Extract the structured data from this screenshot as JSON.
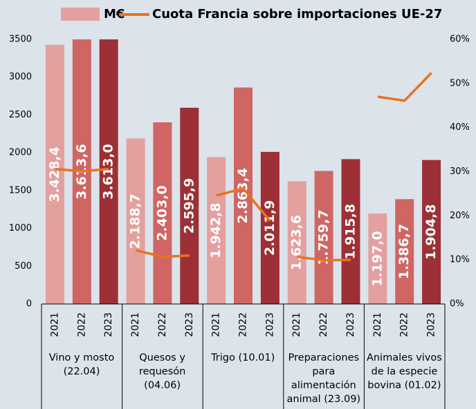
{
  "chart_data": {
    "type": "bar",
    "groups": [
      "Vino y mosto (22.04)",
      "Quesos y requesón (04.06)",
      "Trigo (10.01)",
      "Preparaciones para alimentación animal (23.09)",
      "Animales vivos de la especie bovina (01.02)"
    ],
    "categories": [
      "2021",
      "2022",
      "2023",
      "2021",
      "2022",
      "2023",
      "2021",
      "2022",
      "2023",
      "2021",
      "2022",
      "2023",
      "2021",
      "2022",
      "2023"
    ],
    "series": [
      {
        "name": "M€",
        "colors": [
          "#e3a09f",
          "#cf6664",
          "#9c3036"
        ],
        "values": [
          3428.4,
          3613.6,
          3613.0,
          2188.7,
          2403.0,
          2595.9,
          1942.8,
          2863.4,
          2011.9,
          1623.6,
          1759.7,
          1915.8,
          1197.0,
          1386.7,
          1904.8
        ],
        "value_labels": [
          "3.428,4",
          "3.613,6",
          "3.613,0",
          "2.188,7",
          "2.403,0",
          "2.595,9",
          "1.942,8",
          "2.863,4",
          "2.011,9",
          "1.623,6",
          "1.759,7",
          "1.915,8",
          "1.197,0",
          "1.386,7",
          "1.904,8"
        ]
      },
      {
        "name": "Cuota Francia sobre importaciones UE-27",
        "type": "line",
        "axis": "y2",
        "color": "#e8731f",
        "values": [
          30.6,
          30.1,
          30.6,
          12.2,
          10.7,
          11.0,
          24.6,
          26.2,
          18.8,
          10.7,
          9.9,
          10.0,
          47.0,
          46.1,
          52.4
        ]
      }
    ],
    "ylim": [
      0,
      3500
    ],
    "yticks": [
      0,
      500,
      1000,
      1500,
      2000,
      2500,
      3000,
      3500
    ],
    "y2lim": [
      0,
      60
    ],
    "y2ticks": [
      {
        "value": 0,
        "label": "0%"
      },
      {
        "value": 10,
        "label": "10%"
      },
      {
        "value": 20,
        "label": "20%"
      },
      {
        "value": 30,
        "label": "30%"
      },
      {
        "value": 40,
        "label": "40%"
      },
      {
        "value": 50,
        "label": "50%"
      },
      {
        "value": 60,
        "label": "60%"
      }
    ]
  }
}
